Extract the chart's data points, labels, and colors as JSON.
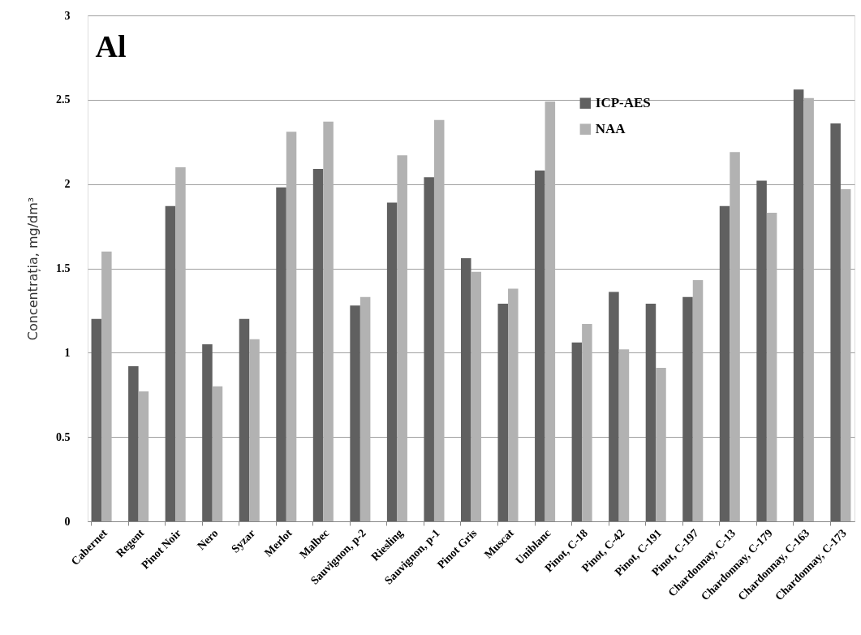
{
  "chart_data": {
    "type": "bar",
    "title": "Al",
    "ylabel": "Concentrația, mg/dm³",
    "categories": [
      "Cabernet",
      "Regent",
      "Pinot Noir",
      "Nero",
      "Syzar",
      "Merlot",
      "Malbec",
      "Sauvignon, p-2",
      "Riesling",
      "Sauvignon, p-1",
      "Pinot Gris",
      "Muscat",
      "Uniblanc",
      "Pinot, C-18",
      "Pinot, C-42",
      "Pinot, C-191",
      "Pinot, C-197",
      "Chardonnay, C-13",
      "Chardonnay, C-179",
      "Chardonnay, C-163",
      "Chardonnay, C-173"
    ],
    "series": [
      {
        "name": "ICP-AES",
        "color": "#606060",
        "values": [
          1.2,
          0.92,
          1.87,
          1.05,
          1.2,
          1.98,
          2.09,
          1.28,
          1.89,
          2.04,
          1.56,
          1.29,
          2.08,
          1.06,
          1.36,
          1.29,
          1.33,
          1.87,
          2.02,
          2.56,
          2.36
        ]
      },
      {
        "name": "NAA",
        "color": "#b2b2b2",
        "values": [
          1.6,
          0.77,
          2.1,
          0.8,
          1.08,
          2.31,
          2.37,
          1.33,
          2.17,
          2.38,
          1.48,
          1.38,
          2.49,
          1.17,
          1.02,
          0.91,
          1.43,
          2.19,
          1.83,
          2.51,
          1.97
        ]
      }
    ],
    "ylim": [
      0,
      3
    ],
    "yticks": [
      0,
      0.5,
      1,
      1.5,
      2,
      2.5,
      3
    ],
    "grid": "y",
    "legend": "top right"
  }
}
